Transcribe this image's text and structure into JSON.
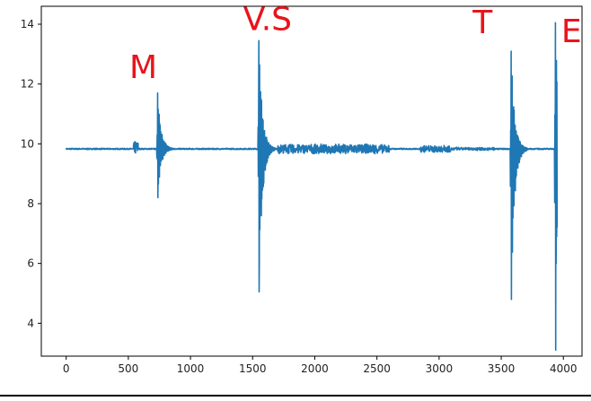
{
  "chart_data": {
    "type": "line",
    "title": "",
    "xlabel": "",
    "ylabel": "",
    "xlim": [
      -200,
      4150
    ],
    "ylim": [
      2.9,
      14.6
    ],
    "x_ticks": [
      0,
      500,
      1000,
      1500,
      2000,
      2500,
      3000,
      3500,
      4000
    ],
    "y_ticks": [
      4,
      6,
      8,
      10,
      12,
      14
    ],
    "grid": false,
    "legend": "none",
    "line_color": "#1f77b4",
    "baseline": 9.83,
    "x_start": 0,
    "x_end": 3950,
    "events": [
      {
        "x": 735,
        "max": 11.7,
        "min": 8.2
      },
      {
        "x": 1550,
        "max": 13.45,
        "min": 5.05
      },
      {
        "x": 3580,
        "max": 13.1,
        "min": 4.8
      },
      {
        "x": 3935,
        "max": 14.05,
        "min": 3.1
      }
    ],
    "annotations": [
      {
        "text": "M",
        "x": 620,
        "y": 12.2
      },
      {
        "text": "V.S",
        "x": 1620,
        "y": 13.8
      },
      {
        "text": "T",
        "x": 3350,
        "y": 13.7
      },
      {
        "text": "E",
        "x": 4065,
        "y": 13.4
      }
    ],
    "annotation_color": "#e8141c"
  }
}
